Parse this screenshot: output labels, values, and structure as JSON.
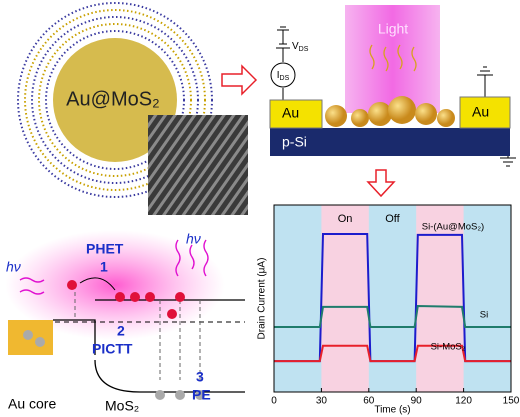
{
  "panel_particle": {
    "label": "Au@MoS₂"
  },
  "panel_device": {
    "light": "Light",
    "vds": "V",
    "vds_sub": "DS",
    "ids": "I",
    "ids_sub": "DS",
    "pad_left": "Au",
    "pad_right": "Au",
    "substrate": "p-Si"
  },
  "panel_band": {
    "phet": "PHET",
    "n1": "1",
    "hv_top": "hν",
    "hv_left": "hν",
    "n2": "2",
    "pictt": "PICTT",
    "n3": "3",
    "pe": "PE",
    "au_core": "Au core",
    "mos2": "MoS₂"
  },
  "chart_data": {
    "type": "line",
    "x_label": "Time (s)",
    "y_label": "Drain Current (μA)",
    "xlim": [
      0,
      150
    ],
    "xticks": [
      0,
      30,
      60,
      90,
      120,
      150
    ],
    "ylim": [
      -5,
      35
    ],
    "regions": [
      {
        "label": "On",
        "start": 30,
        "end": 60,
        "color": "#f8d2e1"
      },
      {
        "label": "Off",
        "start": 60,
        "end": 90,
        "color": "#bfe2f1"
      }
    ],
    "x": [
      0,
      29,
      31,
      59,
      61,
      89,
      91,
      119,
      121,
      150
    ],
    "series": [
      {
        "name": "Si-(Au@MoS₂)",
        "color": "#1c1ccc",
        "values": [
          1.6,
          1.6,
          28.8,
          28.8,
          1.6,
          1.6,
          28.6,
          28.6,
          1.6,
          1.6
        ]
      },
      {
        "name": "Si",
        "color": "#1f7c6c",
        "values": [
          8.9,
          8.9,
          13.2,
          13.2,
          8.9,
          8.9,
          13.4,
          13.2,
          8.9,
          8.9
        ]
      },
      {
        "name": "Si-MoS₂",
        "color": "#e8202a",
        "values": [
          1.6,
          1.6,
          4.9,
          4.9,
          1.6,
          1.6,
          4.9,
          4.9,
          1.6,
          1.6
        ]
      }
    ]
  }
}
